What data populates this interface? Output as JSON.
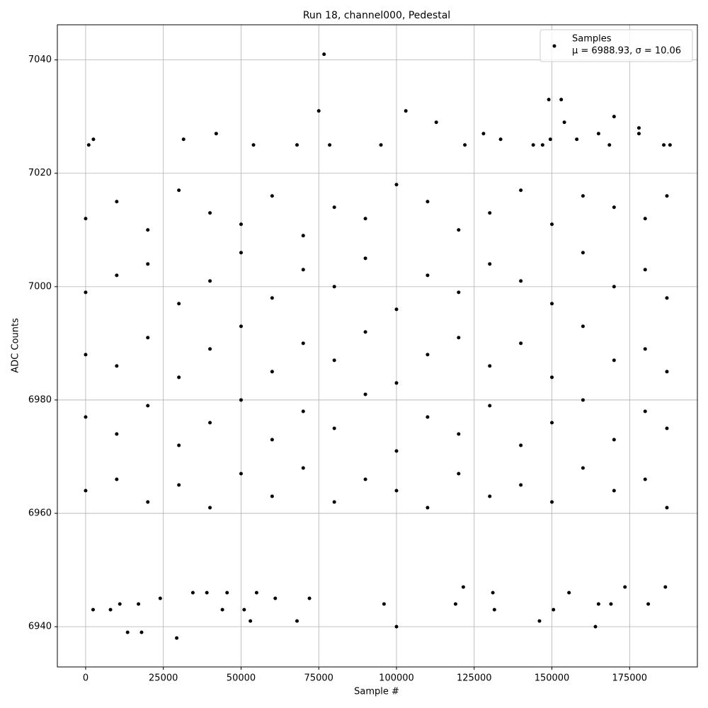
{
  "chart_data": {
    "type": "scatter",
    "title": "Run 18, channel000, Pedestal",
    "xlabel": "Sample #",
    "ylabel": "ADC Counts",
    "legend_note": "μ = 6988.93, σ = 10.06",
    "legend": "upper right",
    "grid": true,
    "xlim": [
      -9100,
      196800
    ],
    "ylim": [
      6932.9,
      7046.2
    ],
    "xticks": [
      0,
      25000,
      50000,
      75000,
      100000,
      125000,
      150000,
      175000
    ],
    "yticks": [
      6940,
      6960,
      6980,
      7000,
      7020,
      7040
    ],
    "x": [
      76700,
      75000,
      103000,
      112800,
      149000,
      153000,
      170000,
      154000,
      178000,
      178000,
      165000,
      128000,
      42000,
      2500,
      31500,
      133500,
      149500,
      158000,
      1000,
      54000,
      68000,
      78500,
      95000,
      122000,
      144000,
      147000,
      168500,
      186000,
      188000,
      29300,
      13500,
      18000,
      100000,
      164000,
      53000,
      68000,
      146000,
      2400,
      8000,
      44000,
      51000,
      131500,
      150500,
      17000,
      11000,
      96000,
      119000,
      165000,
      169000,
      181000,
      24000,
      61000,
      72000,
      34500,
      39000,
      45500,
      55000,
      131000,
      155500,
      121500,
      173500,
      186500,
      0,
      0,
      0,
      0,
      0,
      10000,
      10000,
      10000,
      10000,
      10000,
      20000,
      20000,
      20000,
      20000,
      20000,
      30000,
      30000,
      30000,
      30000,
      30000,
      40000,
      40000,
      40000,
      40000,
      40000,
      50000,
      50000,
      50000,
      50000,
      50000,
      60000,
      60000,
      60000,
      60000,
      60000,
      70000,
      70000,
      70000,
      70000,
      70000,
      80000,
      80000,
      80000,
      80000,
      80000,
      90000,
      90000,
      90000,
      90000,
      90000,
      100000,
      100000,
      100000,
      100000,
      100000,
      110000,
      110000,
      110000,
      110000,
      110000,
      120000,
      120000,
      120000,
      120000,
      120000,
      130000,
      130000,
      130000,
      130000,
      130000,
      140000,
      140000,
      140000,
      140000,
      140000,
      150000,
      150000,
      150000,
      150000,
      150000,
      160000,
      160000,
      160000,
      160000,
      160000,
      170000,
      170000,
      170000,
      170000,
      170000,
      180000,
      180000,
      180000,
      180000,
      180000,
      187000,
      187000,
      187000,
      187000,
      187000
    ],
    "series": [
      {
        "name": "Samples",
        "color": "#000000",
        "values": [
          7041,
          7031,
          7031,
          7029,
          7033,
          7033,
          7030,
          7029,
          7028,
          7027,
          7027,
          7027,
          7027,
          7026,
          7026,
          7026,
          7026,
          7026,
          7025,
          7025,
          7025,
          7025,
          7025,
          7025,
          7025,
          7025,
          7025,
          7025,
          7025,
          6938,
          6939,
          6939,
          6940,
          6940,
          6941,
          6941,
          6941,
          6943,
          6943,
          6943,
          6943,
          6943,
          6943,
          6944,
          6944,
          6944,
          6944,
          6944,
          6944,
          6944,
          6945,
          6945,
          6945,
          6946,
          6946,
          6946,
          6946,
          6946,
          6946,
          6947,
          6947,
          6947,
          6964,
          6977,
          6988,
          6999,
          7012,
          6966,
          6974,
          6986,
          7002,
          7015,
          6962,
          6979,
          6991,
          7004,
          7010,
          6965,
          6972,
          6984,
          6997,
          7017,
          6961,
          6976,
          6989,
          7001,
          7013,
          6967,
          6980,
          6993,
          7006,
          7011,
          6963,
          6973,
          6985,
          6998,
          7016,
          6968,
          6978,
          6990,
          7003,
          7009,
          6962,
          6975,
          6987,
          7000,
          7014,
          6966,
          6981,
          6992,
          7005,
          7012,
          6964,
          6971,
          6983,
          6996,
          7018,
          6961,
          6977,
          6988,
          7002,
          7015,
          6967,
          6974,
          6991,
          6999,
          7010,
          6963,
          6979,
          6986,
          7004,
          7013,
          6965,
          6972,
          6990,
          7001,
          7017,
          6962,
          6976,
          6984,
          6997,
          7011,
          6968,
          6980,
          6993,
          7006,
          7016,
          6964,
          6973,
          6987,
          7000,
          7014,
          6966,
          6978,
          6989,
          7003,
          7012,
          6961,
          6975,
          6985,
          6998,
          7016
        ]
      }
    ]
  }
}
